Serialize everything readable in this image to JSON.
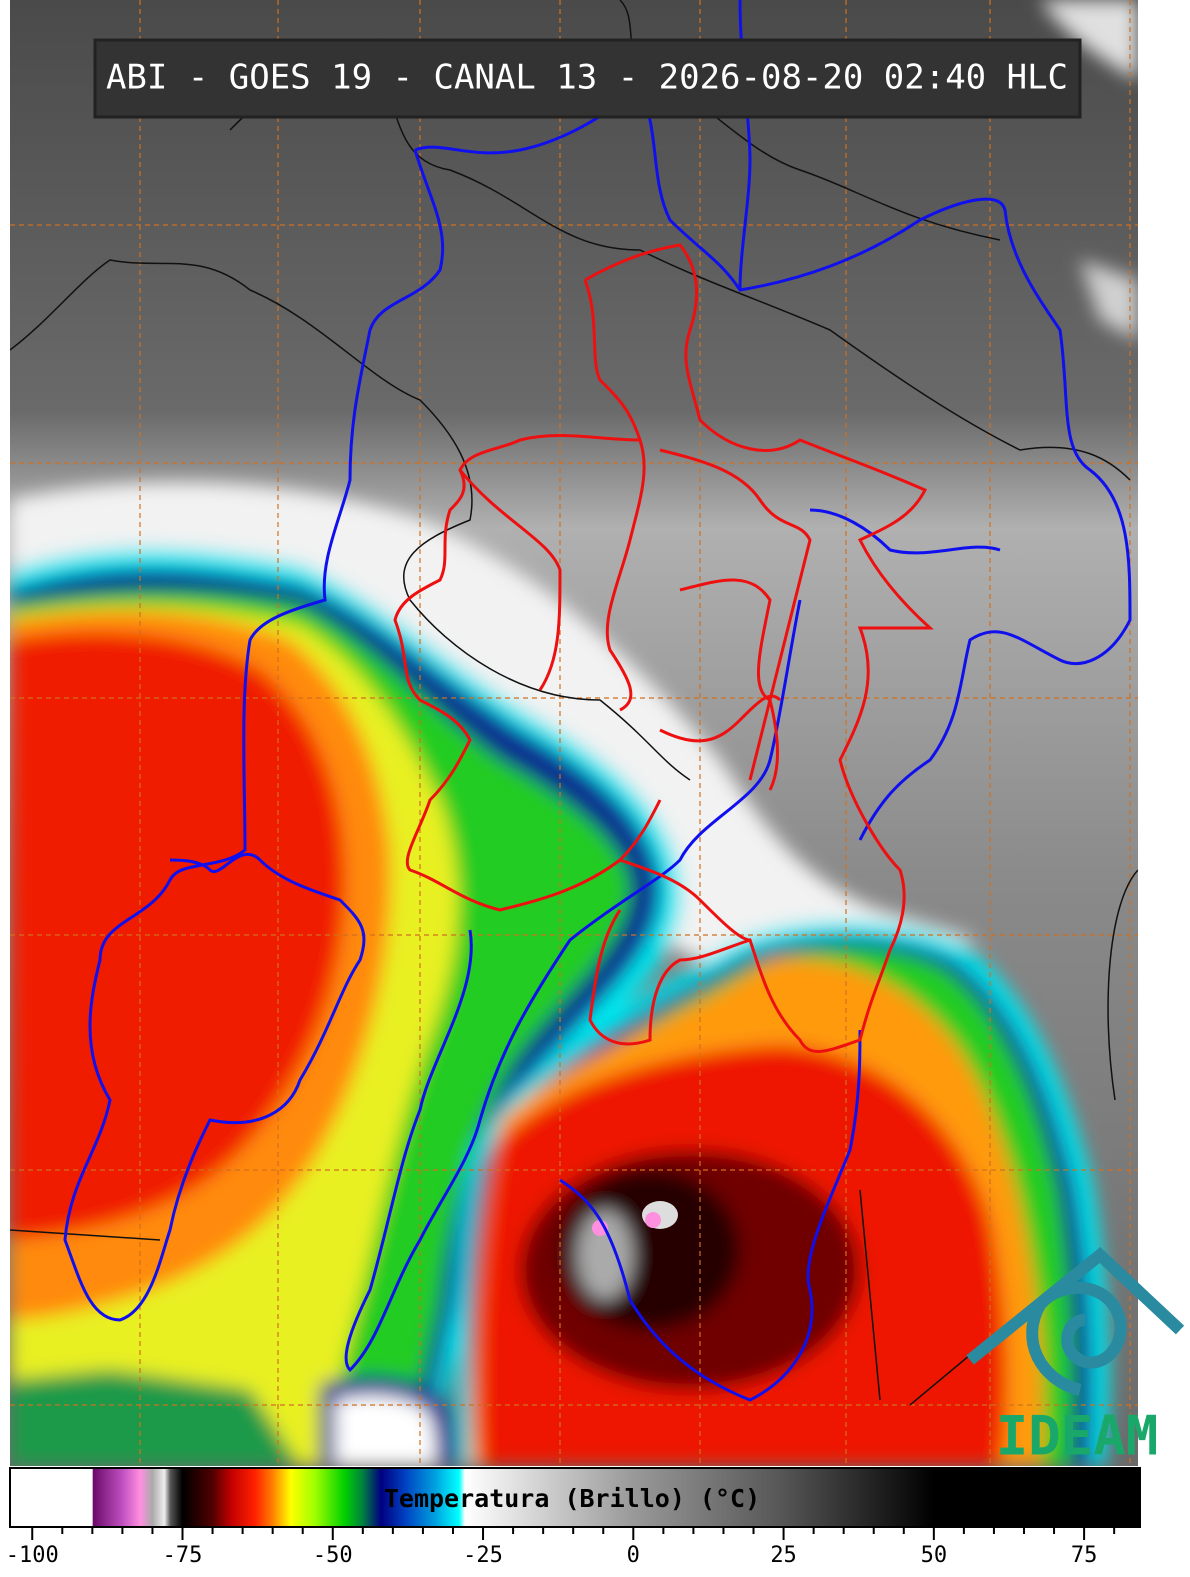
{
  "title": "ABI - GOES 19 - CANAL 13 - 2026-08-20 02:40 HLC",
  "logo": "IDEAM",
  "colorbar": {
    "label": "Temperatura (Brillo) (°C)",
    "lim": [
      -103.7,
      84.3
    ],
    "ticks": [
      -100,
      -75,
      -50,
      -25,
      0,
      25,
      50,
      75
    ],
    "minor_ticks": [
      -95,
      -90,
      -85,
      -80,
      -70,
      -65,
      -60,
      -55,
      -45,
      -40,
      -35,
      -30,
      -20,
      -15,
      -10,
      -5,
      5,
      10,
      15,
      20,
      30,
      35,
      40,
      45,
      55,
      60,
      65,
      70,
      80
    ],
    "stops": [
      {
        "value": -103.7,
        "color": "#ffffff"
      },
      {
        "value": -90,
        "color": "#ffffff"
      },
      {
        "value": -89.9,
        "color": "#6a0a6a"
      },
      {
        "value": -85,
        "color": "#c050c0"
      },
      {
        "value": -82,
        "color": "#ff90e0"
      },
      {
        "value": -80,
        "color": "#aaaaaa"
      },
      {
        "value": -78,
        "color": "#eeeeee"
      },
      {
        "value": -77,
        "color": "#555555"
      },
      {
        "value": -75,
        "color": "#000000"
      },
      {
        "value": -70,
        "color": "#500000"
      },
      {
        "value": -67,
        "color": "#c00000"
      },
      {
        "value": -63,
        "color": "#ff2000"
      },
      {
        "value": -60,
        "color": "#ff8000"
      },
      {
        "value": -57,
        "color": "#ffff00"
      },
      {
        "value": -53,
        "color": "#a0ff00"
      },
      {
        "value": -48,
        "color": "#00d000"
      },
      {
        "value": -45,
        "color": "#008040"
      },
      {
        "value": -42,
        "color": "#000080"
      },
      {
        "value": -38,
        "color": "#0040c0"
      },
      {
        "value": -33,
        "color": "#00a0e0"
      },
      {
        "value": -29,
        "color": "#00ffff"
      },
      {
        "value": -28,
        "color": "#ffffff"
      },
      {
        "value": 0,
        "color": "#999999"
      },
      {
        "value": 25,
        "color": "#555555"
      },
      {
        "value": 50,
        "color": "#000000"
      },
      {
        "value": 84.3,
        "color": "#000000"
      }
    ]
  }
}
